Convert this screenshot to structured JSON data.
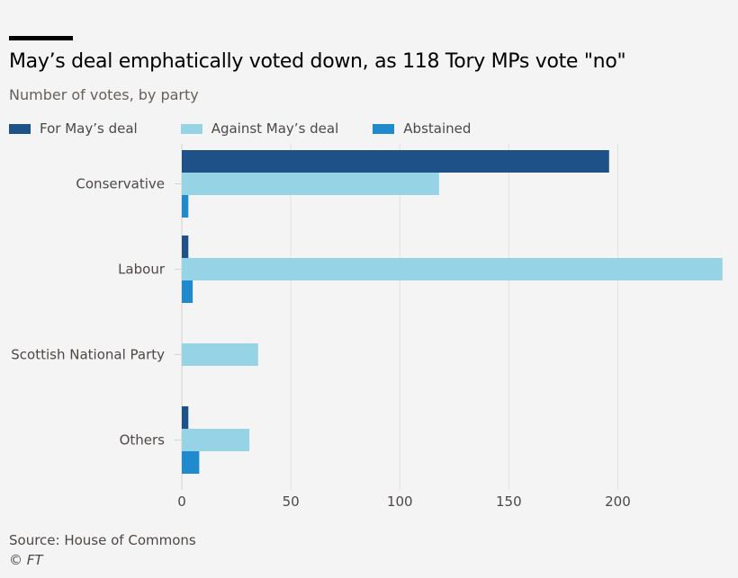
{
  "title": "May’s deal emphatically voted down, as 118 Tory MPs vote \"no\"",
  "subtitle": "Number of votes, by party",
  "source": "Source: House of Commons",
  "credit": "© FT",
  "chart_data": {
    "type": "bar",
    "orientation": "horizontal",
    "categories": [
      "Conservative",
      "Labour",
      "Scottish National Party",
      "Others"
    ],
    "series": [
      {
        "name": "For May’s deal",
        "color": "#1f5189",
        "values": [
          196,
          3,
          0,
          3
        ]
      },
      {
        "name": "Against May’s deal",
        "color": "#96d3e5",
        "values": [
          118,
          248,
          35,
          31
        ]
      },
      {
        "name": "Abstained",
        "color": "#1f8bcc",
        "values": [
          3,
          5,
          0,
          8
        ]
      }
    ],
    "xticks": [
      0,
      50,
      100,
      150,
      200
    ],
    "xlim": [
      0,
      251
    ],
    "grid": true,
    "legend": "top-left",
    "xlabel": "",
    "ylabel": ""
  }
}
